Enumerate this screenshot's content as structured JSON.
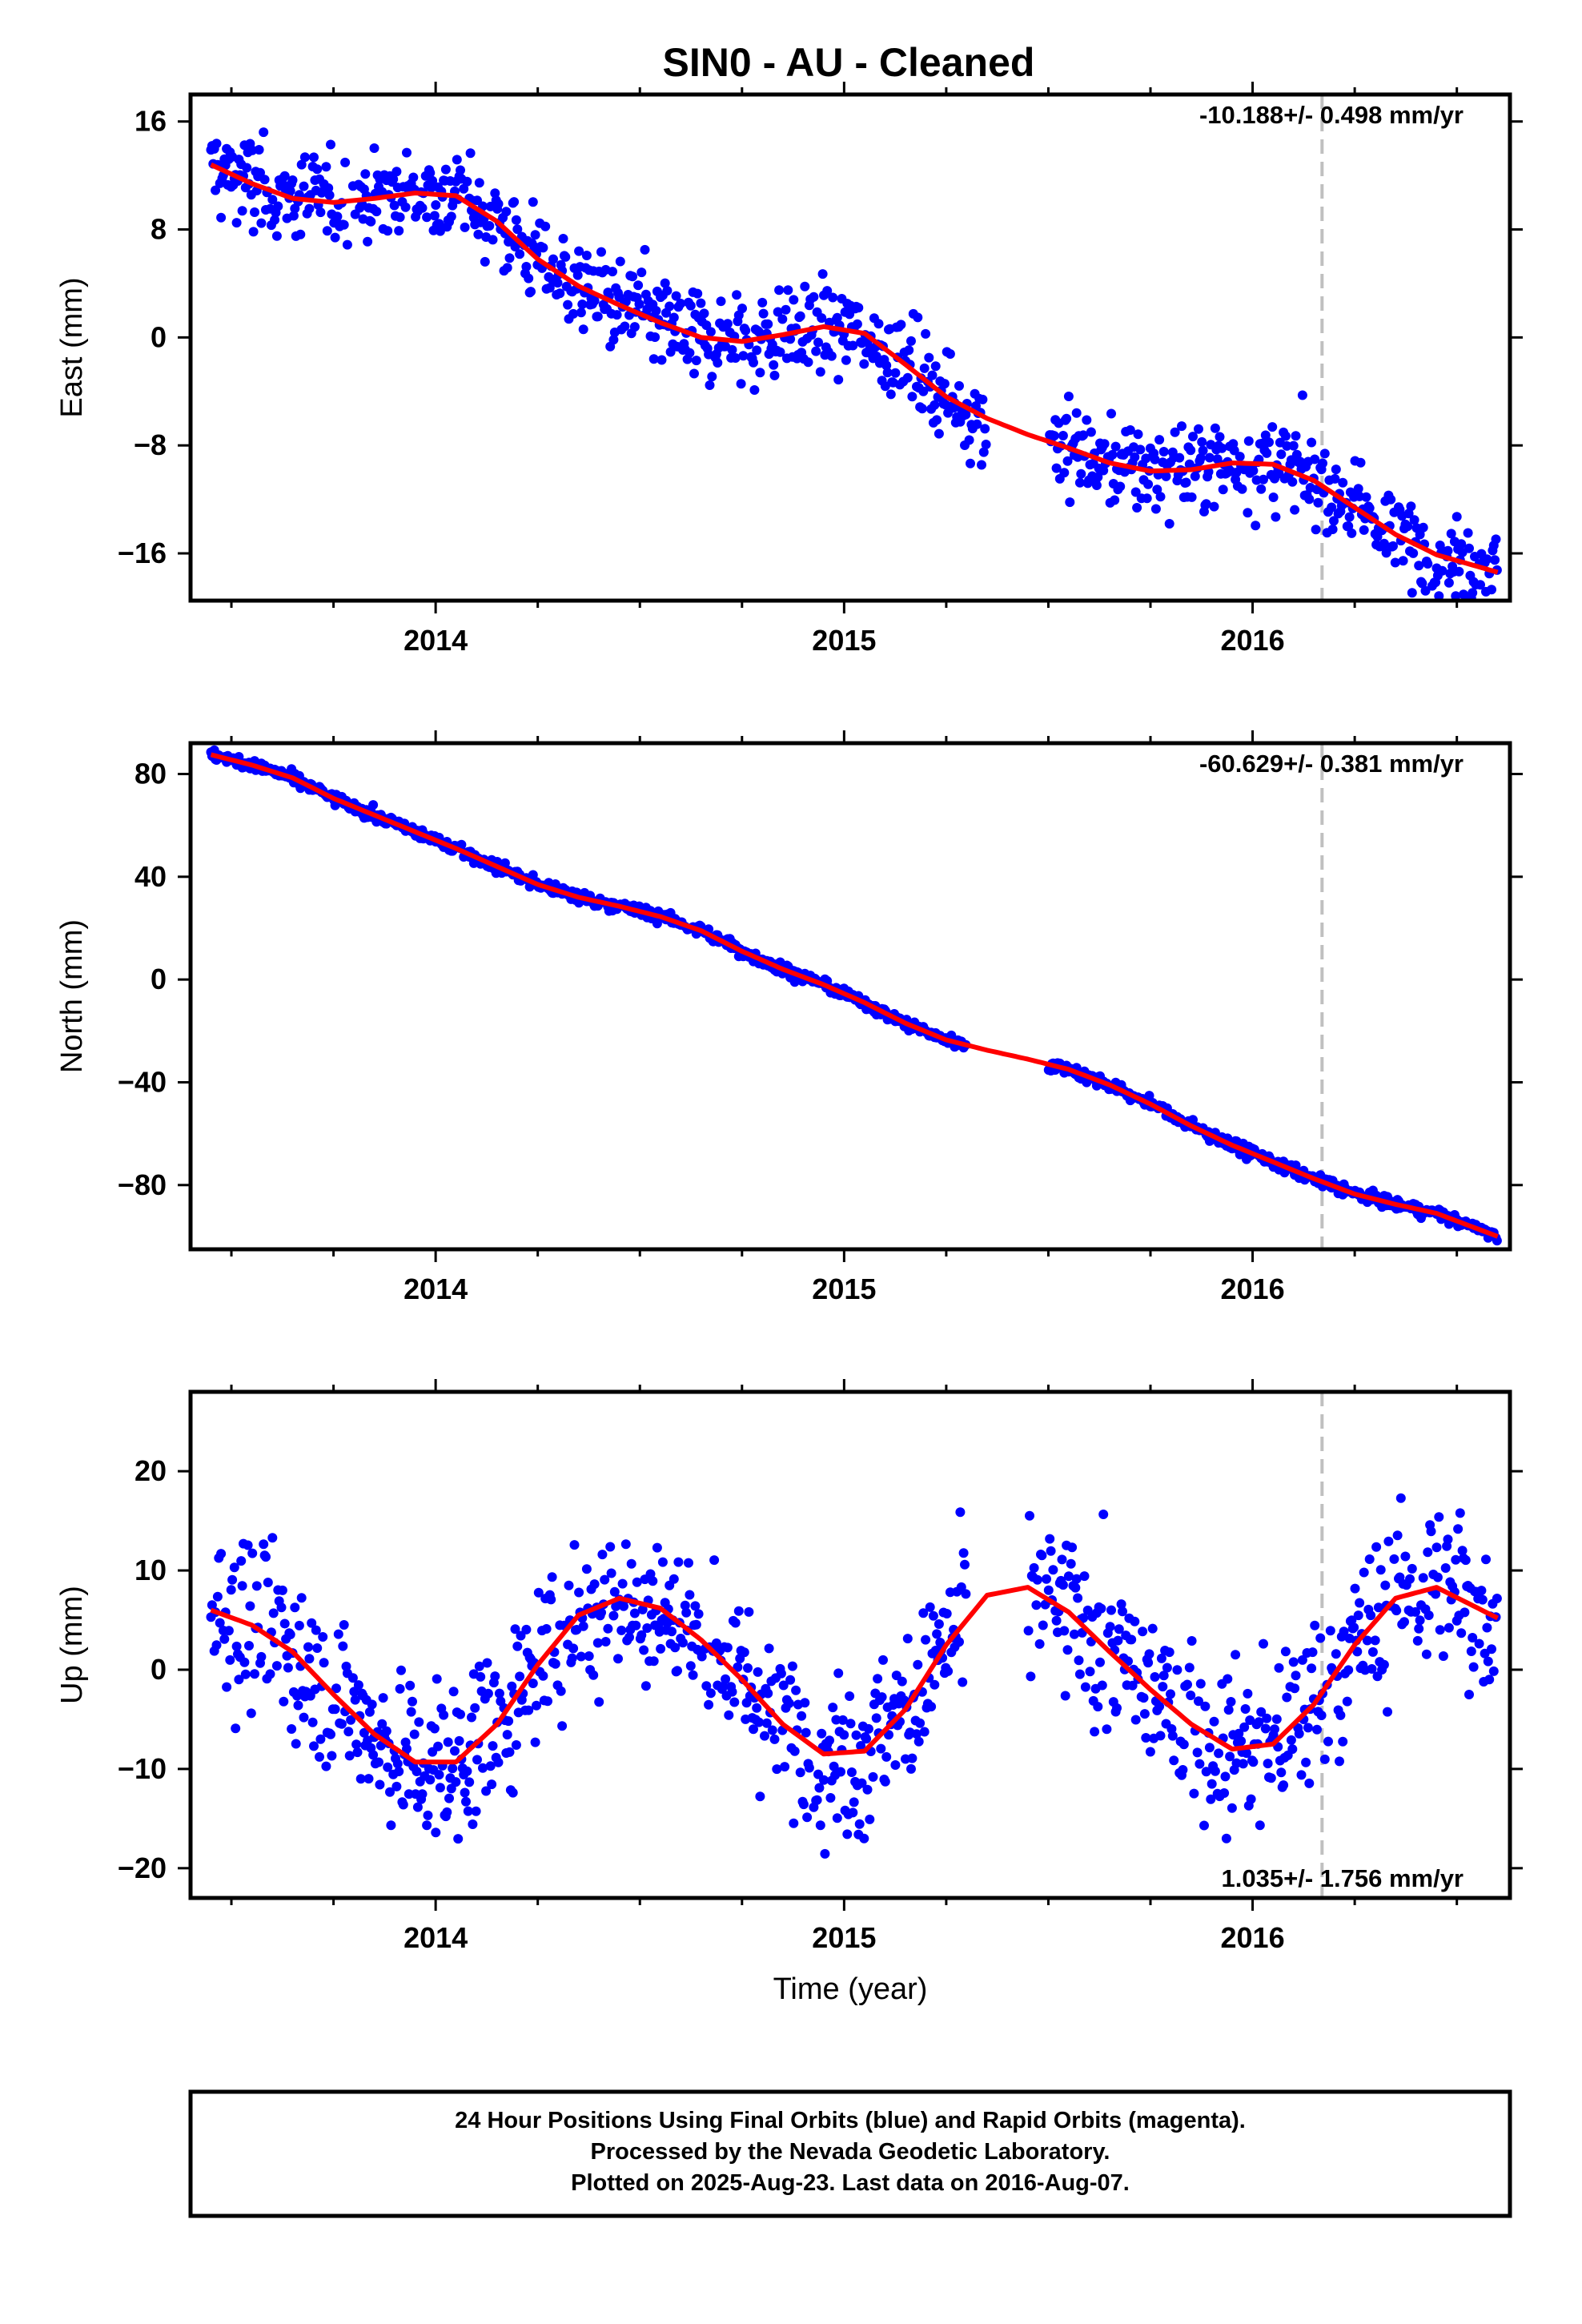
{
  "title": "SIN0  - AU - Cleaned",
  "colors": {
    "points": "#0000ff",
    "fit": "#ff0000",
    "marker_line": "#c0c0c0",
    "frame": "#000000"
  },
  "footer": {
    "lines": [
      "24 Hour Positions Using Final Orbits (blue) and Rapid Orbits (magenta).",
      "Processed by the Nevada Geodetic Laboratory.",
      "Plotted on 2025-Aug-23. Last data on 2016-Aug-07."
    ]
  },
  "chart_data": [
    {
      "type": "scatter",
      "ylabel": "East (mm)",
      "xlabel": "",
      "rate_label": "-10.188+/- 0.498 mm/yr",
      "xlim": [
        2013.4,
        2016.63
      ],
      "ylim": [
        -19.5,
        18
      ],
      "x_ticks": [
        2014,
        2015,
        2016
      ],
      "x_tick_labels": [
        "2014",
        "2015",
        "2016"
      ],
      "y_ticks": [
        16,
        8,
        0,
        -8,
        -16
      ],
      "y_tick_labels": [
        "16",
        "8",
        "0",
        "−8",
        "−16"
      ],
      "marker_x": 2016.17,
      "gap": [
        2015.35,
        2015.5
      ],
      "series": [
        {
          "role": "fit",
          "x": [
            2013.45,
            2013.55,
            2013.65,
            2013.75,
            2013.85,
            2013.95,
            2014.05,
            2014.15,
            2014.25,
            2014.35,
            2014.45,
            2014.55,
            2014.65,
            2014.75,
            2014.85,
            2014.95,
            2015.05,
            2015.15,
            2015.25,
            2015.35,
            2015.45,
            2015.55,
            2015.65,
            2015.75,
            2015.85,
            2015.95,
            2016.05,
            2016.15,
            2016.25,
            2016.35,
            2016.45,
            2016.6
          ],
          "y": [
            12.8,
            11.4,
            10.3,
            10.0,
            10.3,
            10.7,
            10.5,
            8.6,
            5.8,
            3.8,
            2.4,
            1.1,
            0.0,
            -0.3,
            0.2,
            0.8,
            0.3,
            -2.0,
            -4.4,
            -6.0,
            -7.2,
            -8.2,
            -9.3,
            -9.9,
            -9.8,
            -9.3,
            -9.4,
            -10.6,
            -12.6,
            -14.6,
            -16.1,
            -17.4
          ]
        }
      ],
      "scatter_noise": 1.7
    },
    {
      "type": "scatter",
      "ylabel": "North (mm)",
      "xlabel": "",
      "rate_label": "-60.629+/- 0.381 mm/yr",
      "xlim": [
        2013.4,
        2016.63
      ],
      "ylim": [
        -105,
        92
      ],
      "x_ticks": [
        2014,
        2015,
        2016
      ],
      "x_tick_labels": [
        "2014",
        "2015",
        "2016"
      ],
      "y_ticks": [
        80,
        40,
        0,
        -40,
        -80
      ],
      "y_tick_labels": [
        "80",
        "40",
        "0",
        "−40",
        "−80"
      ],
      "marker_x": 2016.17,
      "gap": [
        2015.3,
        2015.5
      ],
      "series": [
        {
          "role": "fit",
          "x": [
            2013.45,
            2013.55,
            2013.65,
            2013.75,
            2013.85,
            2013.95,
            2014.05,
            2014.15,
            2014.25,
            2014.35,
            2014.45,
            2014.55,
            2014.65,
            2014.75,
            2014.85,
            2014.95,
            2015.05,
            2015.15,
            2015.25,
            2015.35,
            2015.45,
            2015.55,
            2015.65,
            2015.75,
            2015.85,
            2015.95,
            2016.05,
            2016.15,
            2016.25,
            2016.35,
            2016.45,
            2016.6
          ],
          "y": [
            87.5,
            83.5,
            78.5,
            70.5,
            64.0,
            57.5,
            51.0,
            44.0,
            37.0,
            32.0,
            28.5,
            24.5,
            19.0,
            11.0,
            4.0,
            -2.0,
            -9.0,
            -17.0,
            -23.5,
            -27.5,
            -31.0,
            -35.0,
            -41.0,
            -48.5,
            -57.0,
            -64.5,
            -71.0,
            -77.5,
            -83.5,
            -87.5,
            -91.0,
            -100.0
          ]
        }
      ],
      "scatter_noise": 1.2
    },
    {
      "type": "scatter",
      "ylabel": "Up (mm)",
      "xlabel": "Time (year)",
      "rate_label": "1.035+/- 1.756 mm/yr",
      "xlim": [
        2013.4,
        2016.63
      ],
      "ylim": [
        -23,
        28
      ],
      "x_ticks": [
        2014,
        2015,
        2016
      ],
      "x_tick_labels": [
        "2014",
        "2015",
        "2016"
      ],
      "y_ticks": [
        20,
        10,
        0,
        -10,
        -20
      ],
      "y_tick_labels": [
        "20",
        "10",
        "0",
        "−10",
        "−20"
      ],
      "marker_x": 2016.17,
      "gap": [
        2015.3,
        2015.45
      ],
      "series": [
        {
          "role": "fit",
          "x": [
            2013.45,
            2013.55,
            2013.65,
            2013.75,
            2013.85,
            2013.95,
            2014.05,
            2014.15,
            2014.25,
            2014.35,
            2014.45,
            2014.55,
            2014.65,
            2014.75,
            2014.85,
            2014.95,
            2015.05,
            2015.15,
            2015.25,
            2015.35,
            2015.45,
            2015.55,
            2015.65,
            2015.75,
            2015.85,
            2015.95,
            2016.05,
            2016.15,
            2016.25,
            2016.35,
            2016.45,
            2016.6
          ],
          "y": [
            6.0,
            4.5,
            1.8,
            -2.5,
            -6.5,
            -9.3,
            -9.3,
            -5.5,
            0.5,
            5.5,
            7.2,
            6.2,
            3.0,
            -1.0,
            -5.5,
            -8.5,
            -8.2,
            -4.0,
            2.5,
            7.5,
            8.3,
            5.8,
            1.8,
            -2.0,
            -5.5,
            -8.0,
            -7.5,
            -3.5,
            2.5,
            7.2,
            8.3,
            5.2
          ]
        }
      ],
      "scatter_noise": 4.2
    }
  ]
}
